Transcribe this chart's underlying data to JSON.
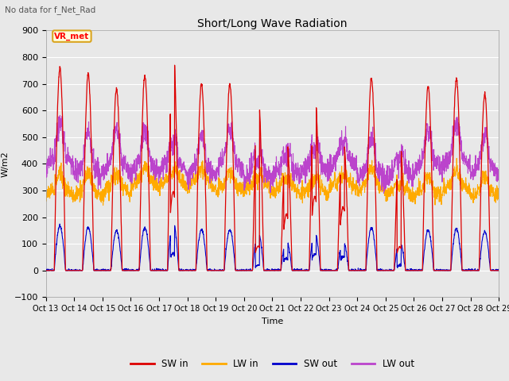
{
  "title": "Short/Long Wave Radiation",
  "subtitle": "No data for f_Net_Rad",
  "xlabel": "Time",
  "ylabel": "W/m2",
  "ylim": [
    -100,
    900
  ],
  "yticks": [
    -100,
    0,
    100,
    200,
    300,
    400,
    500,
    600,
    700,
    800,
    900
  ],
  "xtick_labels": [
    "Oct 13",
    "Oct 14",
    "Oct 15",
    "Oct 16",
    "Oct 17",
    "Oct 18",
    "Oct 19",
    "Oct 20",
    "Oct 21",
    "Oct 22",
    "Oct 23",
    "Oct 24",
    "Oct 25",
    "Oct 26",
    "Oct 27",
    "Oct 28",
    "Oct 29"
  ],
  "series_colors": {
    "SW_in": "#dd0000",
    "LW_in": "#ffaa00",
    "SW_out": "#0000cc",
    "LW_out": "#bb44cc"
  },
  "legend_labels": [
    "SW in",
    "LW in",
    "SW out",
    "LW out"
  ],
  "station_label": "VR_met",
  "background_color": "#e8e8e8",
  "n_days": 16,
  "pts_per_day": 144
}
